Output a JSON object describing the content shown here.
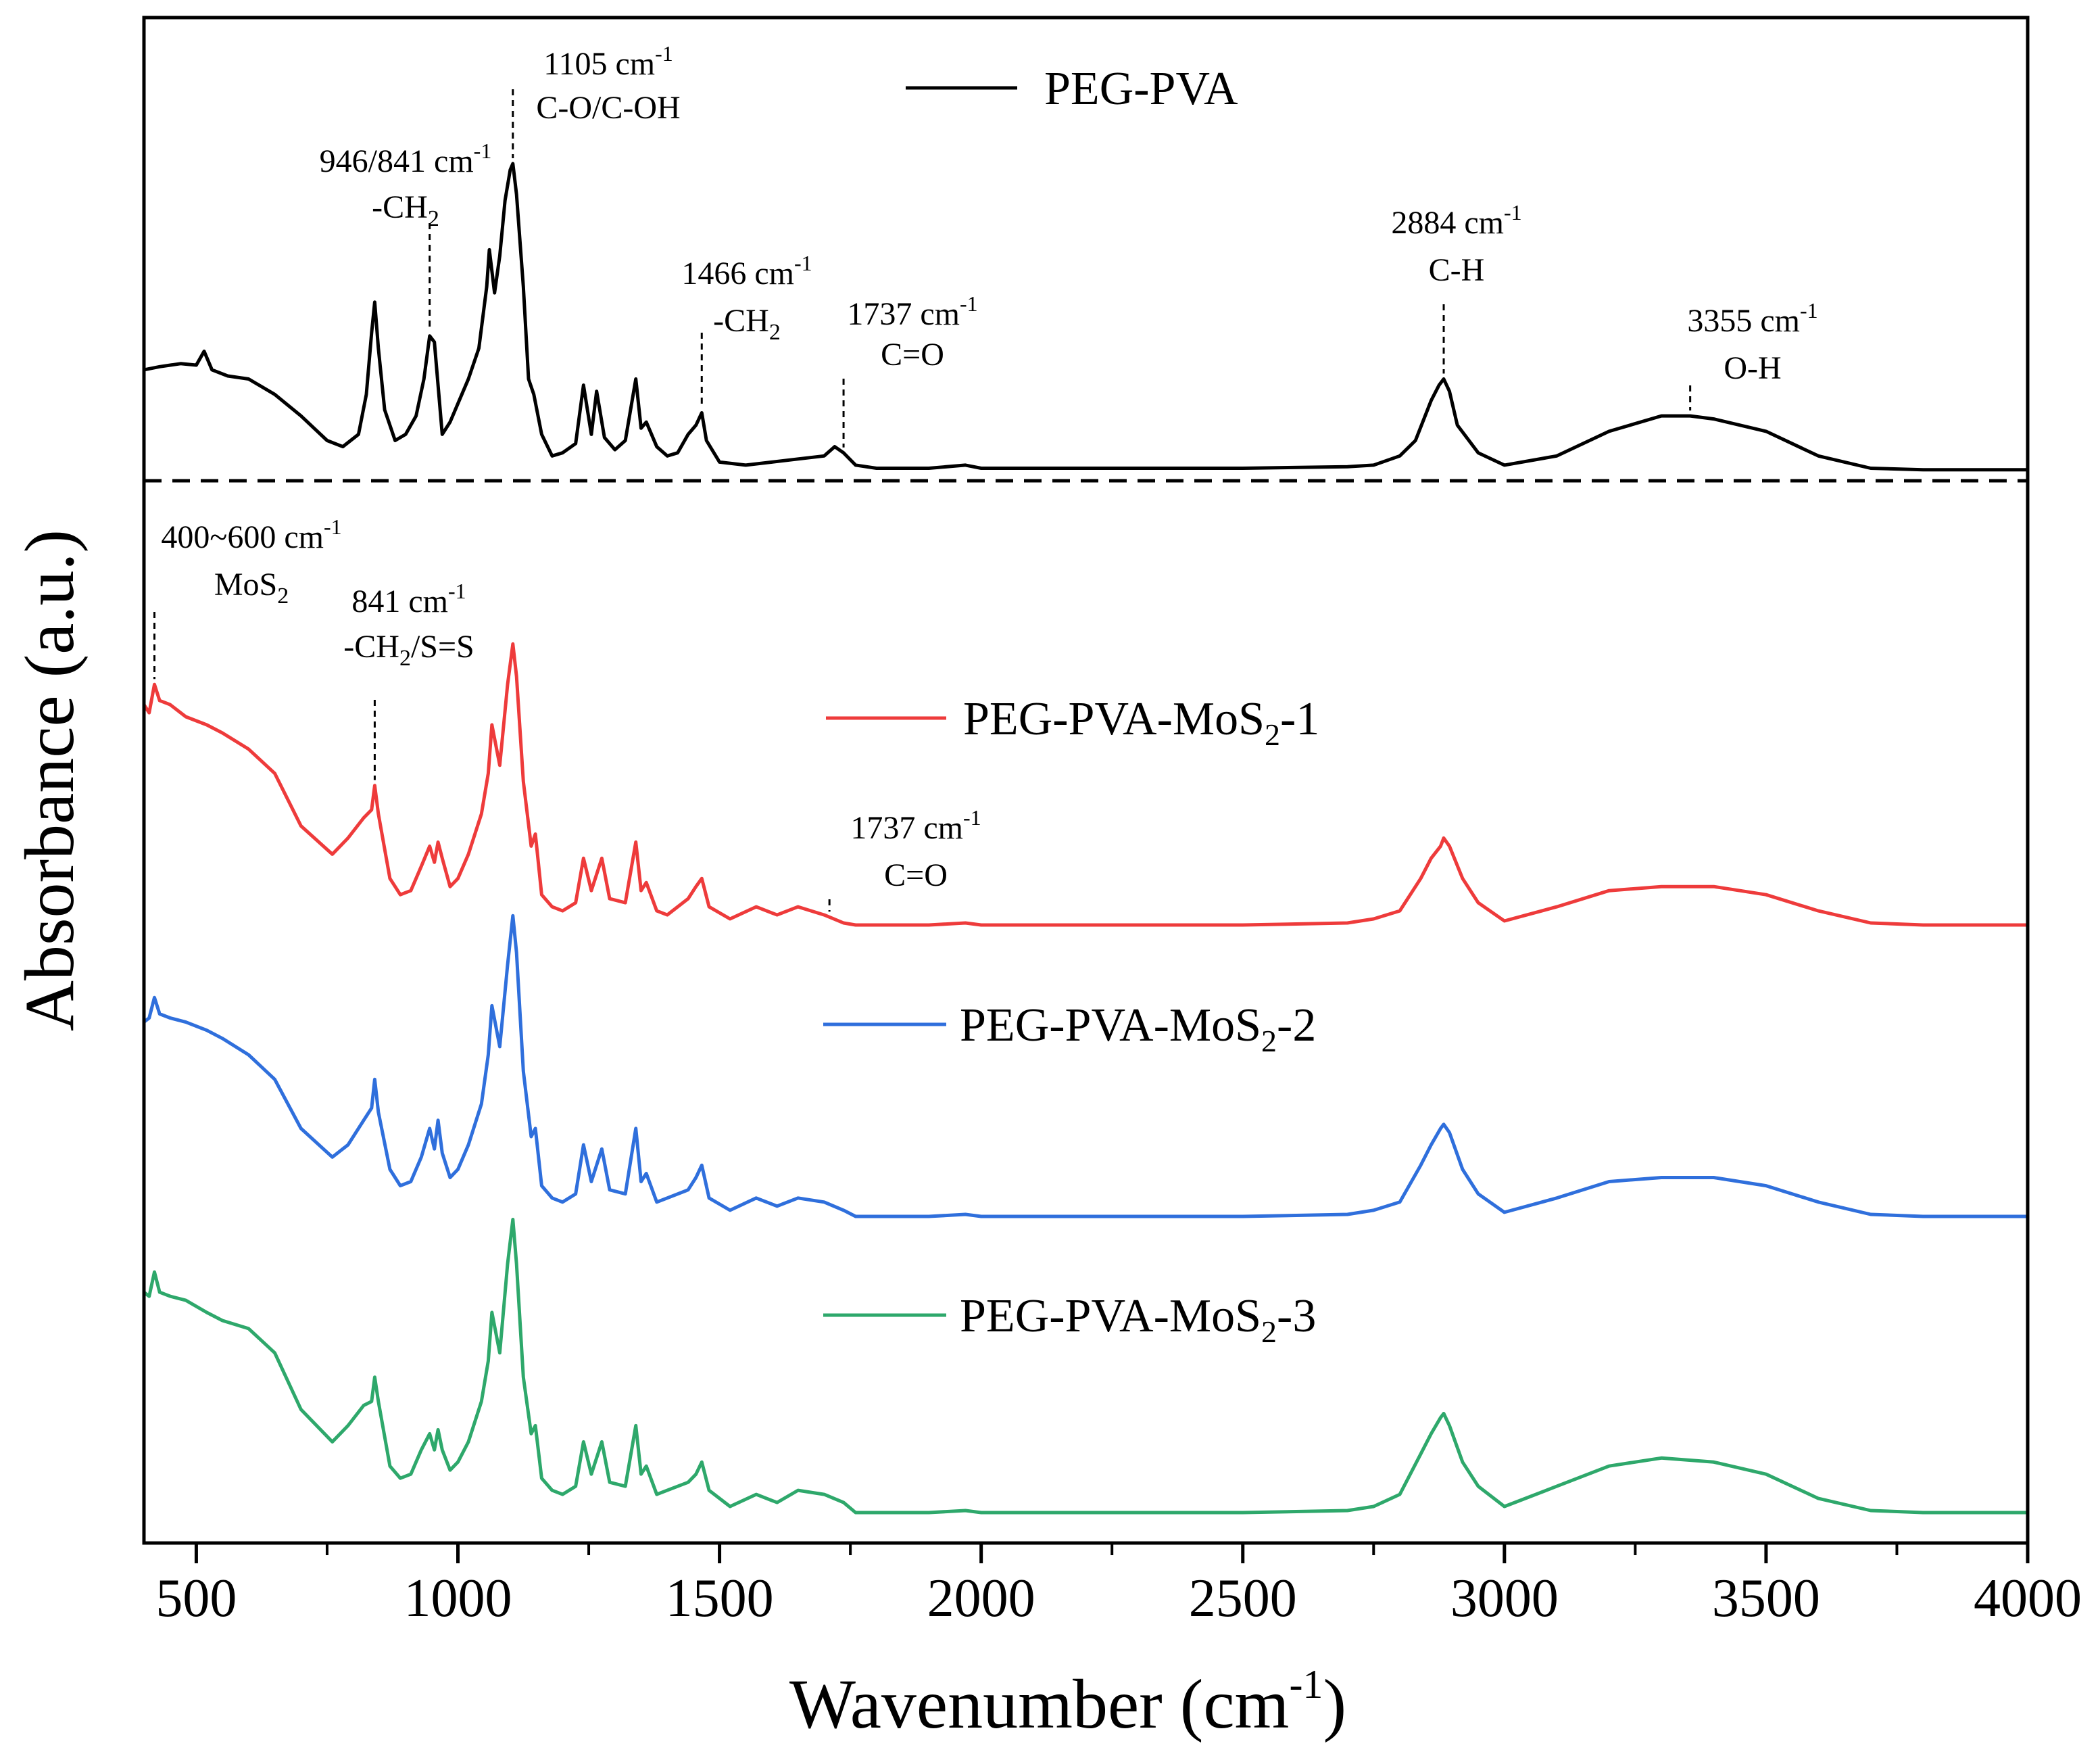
{
  "chart_data": {
    "type": "line",
    "xlabel": "Wavenumber",
    "xlabel_unit_base": "(cm",
    "xlabel_unit_exp": "-1",
    "xlabel_unit_close": ")",
    "ylabel": "Absorbance (a.u.)",
    "xlim": [
      400,
      4000
    ],
    "x_ticks": [
      500,
      1000,
      1500,
      2000,
      2500,
      3000,
      3500,
      4000
    ],
    "y_ticks": "none",
    "grid": false,
    "legend_placement": "inline-right-of-center",
    "separator": "dashed horizontal line between PEG-PVA and MoS2 composites",
    "series": [
      {
        "base": "PEG-PVA",
        "sub": "",
        "suffix": "",
        "color": "#000000",
        "x": [
          400,
          430,
          470,
          500,
          515,
          530,
          560,
          600,
          650,
          700,
          750,
          780,
          810,
          825,
          835,
          841,
          848,
          860,
          880,
          900,
          920,
          935,
          946,
          955,
          970,
          985,
          1000,
          1020,
          1040,
          1055,
          1060,
          1070,
          1080,
          1090,
          1100,
          1105,
          1112,
          1125,
          1135,
          1145,
          1160,
          1180,
          1200,
          1225,
          1240,
          1255,
          1265,
          1280,
          1300,
          1320,
          1340,
          1350,
          1360,
          1380,
          1400,
          1420,
          1440,
          1455,
          1466,
          1475,
          1500,
          1550,
          1600,
          1650,
          1700,
          1720,
          1737,
          1760,
          1800,
          1900,
          1970,
          2000,
          2100,
          2300,
          2500,
          2700,
          2750,
          2800,
          2830,
          2860,
          2875,
          2884,
          2895,
          2910,
          2950,
          3000,
          3100,
          3200,
          3300,
          3355,
          3400,
          3500,
          3600,
          3700,
          3800,
          4000
        ],
        "y": [
          0.33,
          0.34,
          0.35,
          0.345,
          0.39,
          0.33,
          0.31,
          0.3,
          0.25,
          0.18,
          0.1,
          0.08,
          0.12,
          0.25,
          0.45,
          0.55,
          0.4,
          0.2,
          0.1,
          0.12,
          0.18,
          0.3,
          0.44,
          0.42,
          0.12,
          0.16,
          0.22,
          0.3,
          0.4,
          0.6,
          0.72,
          0.58,
          0.7,
          0.88,
          0.98,
          1.0,
          0.9,
          0.6,
          0.3,
          0.25,
          0.12,
          0.05,
          0.06,
          0.09,
          0.28,
          0.12,
          0.26,
          0.11,
          0.07,
          0.1,
          0.3,
          0.14,
          0.16,
          0.08,
          0.05,
          0.06,
          0.12,
          0.15,
          0.19,
          0.1,
          0.03,
          0.02,
          0.03,
          0.04,
          0.05,
          0.08,
          0.06,
          0.02,
          0.01,
          0.01,
          0.02,
          0.01,
          0.01,
          0.01,
          0.01,
          0.015,
          0.02,
          0.05,
          0.1,
          0.23,
          0.28,
          0.3,
          0.26,
          0.15,
          0.06,
          0.02,
          0.05,
          0.13,
          0.18,
          0.18,
          0.17,
          0.13,
          0.05,
          0.01,
          0.005,
          0.005
        ]
      },
      {
        "base": "PEG-PVA-MoS",
        "sub": "2",
        "suffix": "-1",
        "color": "#ee3b3b",
        "x": [
          400,
          410,
          420,
          430,
          450,
          480,
          520,
          550,
          600,
          650,
          700,
          760,
          790,
          820,
          835,
          841,
          848,
          870,
          890,
          910,
          930,
          946,
          955,
          962,
          970,
          985,
          1000,
          1020,
          1045,
          1058,
          1065,
          1080,
          1095,
          1105,
          1112,
          1125,
          1140,
          1148,
          1160,
          1180,
          1200,
          1225,
          1240,
          1255,
          1275,
          1290,
          1320,
          1340,
          1350,
          1360,
          1380,
          1400,
          1440,
          1455,
          1466,
          1480,
          1520,
          1570,
          1610,
          1650,
          1700,
          1737,
          1760,
          1800,
          1900,
          1970,
          2000,
          2100,
          2300,
          2500,
          2700,
          2750,
          2800,
          2840,
          2860,
          2878,
          2884,
          2895,
          2920,
          2950,
          3000,
          3100,
          3200,
          3300,
          3400,
          3500,
          3600,
          3700,
          3800,
          4000
        ],
        "y": [
          0.55,
          0.53,
          0.6,
          0.56,
          0.55,
          0.52,
          0.5,
          0.48,
          0.44,
          0.38,
          0.25,
          0.18,
          0.22,
          0.27,
          0.29,
          0.35,
          0.28,
          0.12,
          0.08,
          0.09,
          0.15,
          0.2,
          0.16,
          0.21,
          0.17,
          0.1,
          0.12,
          0.18,
          0.28,
          0.38,
          0.5,
          0.4,
          0.6,
          0.7,
          0.62,
          0.36,
          0.2,
          0.23,
          0.08,
          0.05,
          0.04,
          0.06,
          0.17,
          0.09,
          0.17,
          0.07,
          0.06,
          0.21,
          0.09,
          0.11,
          0.04,
          0.03,
          0.07,
          0.1,
          0.12,
          0.05,
          0.02,
          0.05,
          0.03,
          0.05,
          0.03,
          0.01,
          0.005,
          0.005,
          0.005,
          0.01,
          0.005,
          0.005,
          0.005,
          0.005,
          0.01,
          0.02,
          0.04,
          0.12,
          0.17,
          0.2,
          0.22,
          0.2,
          0.12,
          0.06,
          0.015,
          0.05,
          0.09,
          0.1,
          0.1,
          0.08,
          0.04,
          0.01,
          0.005,
          0.005
        ]
      },
      {
        "base": "PEG-PVA-MoS",
        "sub": "2",
        "suffix": "-2",
        "color": "#2f6fdc",
        "x": [
          400,
          410,
          420,
          430,
          450,
          480,
          520,
          550,
          600,
          650,
          700,
          760,
          790,
          820,
          835,
          841,
          848,
          870,
          890,
          910,
          930,
          946,
          955,
          962,
          970,
          985,
          1000,
          1020,
          1045,
          1058,
          1065,
          1080,
          1095,
          1105,
          1112,
          1125,
          1140,
          1148,
          1160,
          1180,
          1200,
          1225,
          1240,
          1255,
          1275,
          1290,
          1320,
          1340,
          1350,
          1360,
          1380,
          1400,
          1440,
          1455,
          1466,
          1480,
          1520,
          1570,
          1610,
          1650,
          1700,
          1737,
          1760,
          1800,
          1900,
          1970,
          2000,
          2100,
          2300,
          2500,
          2700,
          2750,
          2800,
          2840,
          2860,
          2878,
          2884,
          2895,
          2920,
          2950,
          3000,
          3100,
          3200,
          3300,
          3400,
          3500,
          3600,
          3700,
          3800,
          4000
        ],
        "y": [
          0.48,
          0.49,
          0.54,
          0.5,
          0.49,
          0.48,
          0.46,
          0.44,
          0.4,
          0.34,
          0.22,
          0.15,
          0.18,
          0.24,
          0.27,
          0.34,
          0.26,
          0.12,
          0.08,
          0.09,
          0.15,
          0.22,
          0.17,
          0.24,
          0.16,
          0.1,
          0.12,
          0.18,
          0.28,
          0.4,
          0.52,
          0.42,
          0.62,
          0.74,
          0.65,
          0.36,
          0.2,
          0.22,
          0.08,
          0.05,
          0.04,
          0.06,
          0.18,
          0.09,
          0.17,
          0.07,
          0.06,
          0.22,
          0.09,
          0.11,
          0.04,
          0.05,
          0.07,
          0.1,
          0.13,
          0.05,
          0.02,
          0.05,
          0.03,
          0.05,
          0.04,
          0.02,
          0.005,
          0.005,
          0.005,
          0.01,
          0.005,
          0.005,
          0.005,
          0.005,
          0.01,
          0.02,
          0.04,
          0.13,
          0.18,
          0.22,
          0.23,
          0.21,
          0.12,
          0.06,
          0.015,
          0.05,
          0.09,
          0.1,
          0.1,
          0.08,
          0.04,
          0.01,
          0.005,
          0.005
        ]
      },
      {
        "base": "PEG-PVA-MoS",
        "sub": "2",
        "suffix": "-3",
        "color": "#2ea86b",
        "x": [
          400,
          410,
          420,
          430,
          450,
          480,
          520,
          550,
          600,
          650,
          700,
          760,
          790,
          820,
          835,
          841,
          848,
          870,
          890,
          910,
          930,
          946,
          955,
          962,
          970,
          985,
          1000,
          1020,
          1045,
          1058,
          1065,
          1080,
          1095,
          1105,
          1112,
          1125,
          1140,
          1148,
          1160,
          1180,
          1200,
          1225,
          1240,
          1255,
          1275,
          1290,
          1320,
          1340,
          1350,
          1360,
          1380,
          1400,
          1440,
          1455,
          1466,
          1480,
          1520,
          1570,
          1610,
          1650,
          1700,
          1737,
          1760,
          1800,
          1900,
          1970,
          2000,
          2100,
          2300,
          2500,
          2700,
          2750,
          2800,
          2840,
          2860,
          2878,
          2884,
          2895,
          2920,
          2950,
          3000,
          3100,
          3200,
          3300,
          3400,
          3500,
          3600,
          3700,
          3800,
          4000
        ],
        "y": [
          0.55,
          0.54,
          0.6,
          0.55,
          0.54,
          0.53,
          0.5,
          0.48,
          0.46,
          0.4,
          0.26,
          0.18,
          0.22,
          0.27,
          0.28,
          0.34,
          0.28,
          0.12,
          0.09,
          0.1,
          0.16,
          0.2,
          0.16,
          0.21,
          0.16,
          0.11,
          0.13,
          0.18,
          0.28,
          0.38,
          0.5,
          0.4,
          0.62,
          0.73,
          0.62,
          0.34,
          0.2,
          0.22,
          0.09,
          0.06,
          0.05,
          0.07,
          0.18,
          0.1,
          0.18,
          0.08,
          0.07,
          0.22,
          0.1,
          0.12,
          0.05,
          0.06,
          0.08,
          0.1,
          0.13,
          0.06,
          0.02,
          0.05,
          0.03,
          0.06,
          0.05,
          0.03,
          0.005,
          0.005,
          0.005,
          0.01,
          0.005,
          0.005,
          0.005,
          0.005,
          0.01,
          0.02,
          0.05,
          0.15,
          0.2,
          0.24,
          0.25,
          0.22,
          0.13,
          0.07,
          0.02,
          0.07,
          0.12,
          0.14,
          0.13,
          0.1,
          0.04,
          0.01,
          0.005,
          0.005
        ]
      }
    ],
    "annotations": [
      {
        "x": 1105,
        "panel": "top",
        "line1": [
          [
            "1105 cm",
            ""
          ],
          [
            "-1",
            "sup"
          ]
        ],
        "line2": [
          [
            "C-O/C-OH",
            ""
          ]
        ]
      },
      {
        "x": 946,
        "panel": "top",
        "line1": [
          [
            "946/841 cm",
            ""
          ],
          [
            "-1",
            "sup"
          ]
        ],
        "line2": [
          [
            "-CH",
            ""
          ],
          [
            "2",
            "sub"
          ]
        ]
      },
      {
        "x": 1466,
        "panel": "top",
        "line1": [
          [
            "1466 cm",
            ""
          ],
          [
            "-1",
            "sup"
          ]
        ],
        "line2": [
          [
            "-CH",
            ""
          ],
          [
            "2",
            "sub"
          ]
        ]
      },
      {
        "x": 1737,
        "panel": "top",
        "line1": [
          [
            "1737 cm",
            ""
          ],
          [
            "-1",
            "sup"
          ]
        ],
        "line2": [
          [
            "C=O",
            ""
          ]
        ]
      },
      {
        "x": 2884,
        "panel": "top",
        "line1": [
          [
            "2884 cm",
            ""
          ],
          [
            "-1",
            "sup"
          ]
        ],
        "line2": [
          [
            "C-H",
            ""
          ]
        ]
      },
      {
        "x": 3355,
        "panel": "top",
        "line1": [
          [
            "3355 cm",
            ""
          ],
          [
            "-1",
            "sup"
          ]
        ],
        "line2": [
          [
            "O-H",
            ""
          ]
        ]
      },
      {
        "x": 420,
        "panel": "bottom",
        "line1": [
          [
            "400~600 cm",
            ""
          ],
          [
            "-1",
            "sup"
          ]
        ],
        "line2": [
          [
            "MoS",
            ""
          ],
          [
            "2",
            "sub"
          ]
        ]
      },
      {
        "x": 841,
        "panel": "bottom",
        "line1": [
          [
            "841 cm",
            ""
          ],
          [
            "-1",
            "sup"
          ]
        ],
        "line2": [
          [
            "-CH",
            ""
          ],
          [
            "2",
            "sub"
          ],
          [
            "/S=S",
            ""
          ]
        ]
      },
      {
        "x": 1710,
        "panel": "bottom",
        "line1": [
          [
            "1737 cm",
            ""
          ],
          [
            "-1",
            "sup"
          ]
        ],
        "line2": [
          [
            "C=O",
            ""
          ]
        ]
      }
    ]
  }
}
